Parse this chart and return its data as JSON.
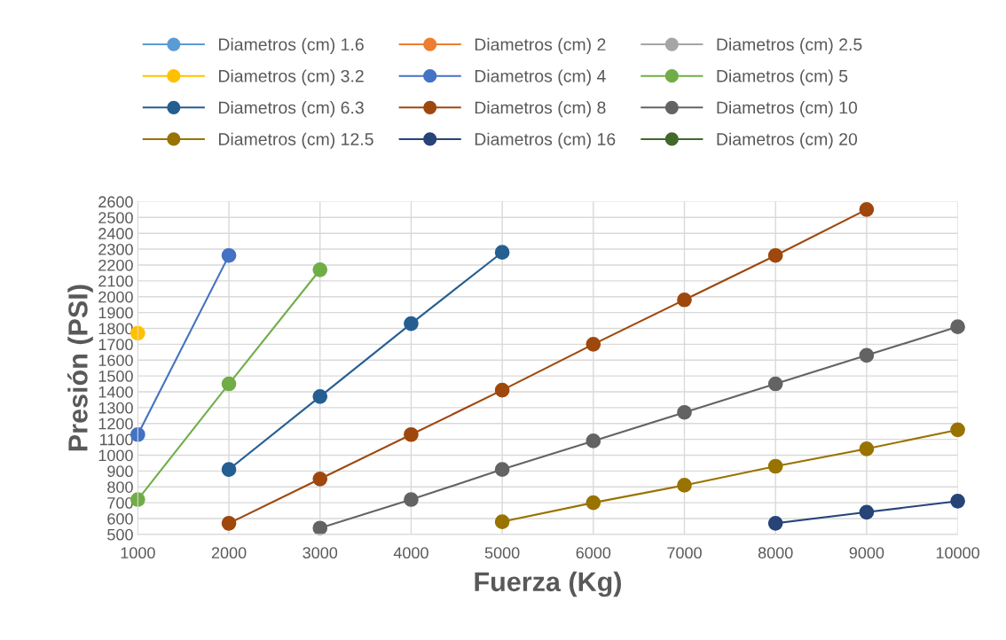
{
  "chart_data": {
    "type": "line",
    "xlabel": "Fuerza (Kg)",
    "ylabel": "Presión (PSI)",
    "x": [
      1000,
      2000,
      3000,
      4000,
      5000,
      6000,
      7000,
      8000,
      9000,
      10000
    ],
    "xlim": [
      1000,
      10000
    ],
    "xticks": [
      1000,
      2000,
      3000,
      4000,
      5000,
      6000,
      7000,
      8000,
      9000,
      10000
    ],
    "ylim": [
      500,
      2600
    ],
    "yticks": [
      500,
      600,
      700,
      800,
      900,
      1000,
      1100,
      1200,
      1300,
      1400,
      1500,
      1600,
      1700,
      1800,
      1900,
      2000,
      2100,
      2200,
      2300,
      2400,
      2500,
      2600
    ],
    "grid": true,
    "legend": "top",
    "marker": "circle",
    "line_style": "solid",
    "series": [
      {
        "name": "Diametros (cm) 1.6",
        "color": "#5b9bd5",
        "values": [
          null,
          null,
          null,
          null,
          null,
          null,
          null,
          null,
          null,
          null
        ]
      },
      {
        "name": "Diametros (cm) 2",
        "color": "#ed7d31",
        "values": [
          null,
          null,
          null,
          null,
          null,
          null,
          null,
          null,
          null,
          null
        ]
      },
      {
        "name": "Diametros (cm) 2.5",
        "color": "#a5a5a5",
        "values": [
          null,
          null,
          null,
          null,
          null,
          null,
          null,
          null,
          null,
          null
        ]
      },
      {
        "name": "Diametros (cm) 3.2",
        "color": "#ffc000",
        "values": [
          1770,
          null,
          null,
          null,
          null,
          null,
          null,
          null,
          null,
          null
        ]
      },
      {
        "name": "Diametros (cm) 4",
        "color": "#4472c4",
        "values": [
          1130,
          2260,
          null,
          null,
          null,
          null,
          null,
          null,
          null,
          null
        ]
      },
      {
        "name": "Diametros (cm) 5",
        "color": "#70ad47",
        "values": [
          720,
          1450,
          2170,
          null,
          null,
          null,
          null,
          null,
          null,
          null
        ]
      },
      {
        "name": "Diametros (cm) 6.3",
        "color": "#255e91",
        "values": [
          null,
          910,
          1370,
          1830,
          2280,
          null,
          null,
          null,
          null,
          null
        ]
      },
      {
        "name": "Diametros (cm) 8",
        "color": "#9e480e",
        "values": [
          null,
          570,
          850,
          1130,
          1410,
          1700,
          1980,
          2260,
          2550,
          null
        ]
      },
      {
        "name": "Diametros (cm) 10",
        "color": "#636363",
        "values": [
          null,
          null,
          540,
          720,
          910,
          1090,
          1270,
          1450,
          1630,
          1810
        ]
      },
      {
        "name": "Diametros (cm) 12.5",
        "color": "#997300",
        "values": [
          null,
          null,
          null,
          null,
          580,
          700,
          810,
          930,
          1040,
          1160
        ]
      },
      {
        "name": "Diametros (cm) 16",
        "color": "#264478",
        "values": [
          null,
          null,
          null,
          null,
          null,
          null,
          null,
          570,
          640,
          710
        ]
      },
      {
        "name": "Diametros (cm) 20",
        "color": "#43682b",
        "values": [
          null,
          null,
          null,
          null,
          null,
          null,
          null,
          null,
          null,
          null
        ]
      }
    ]
  }
}
